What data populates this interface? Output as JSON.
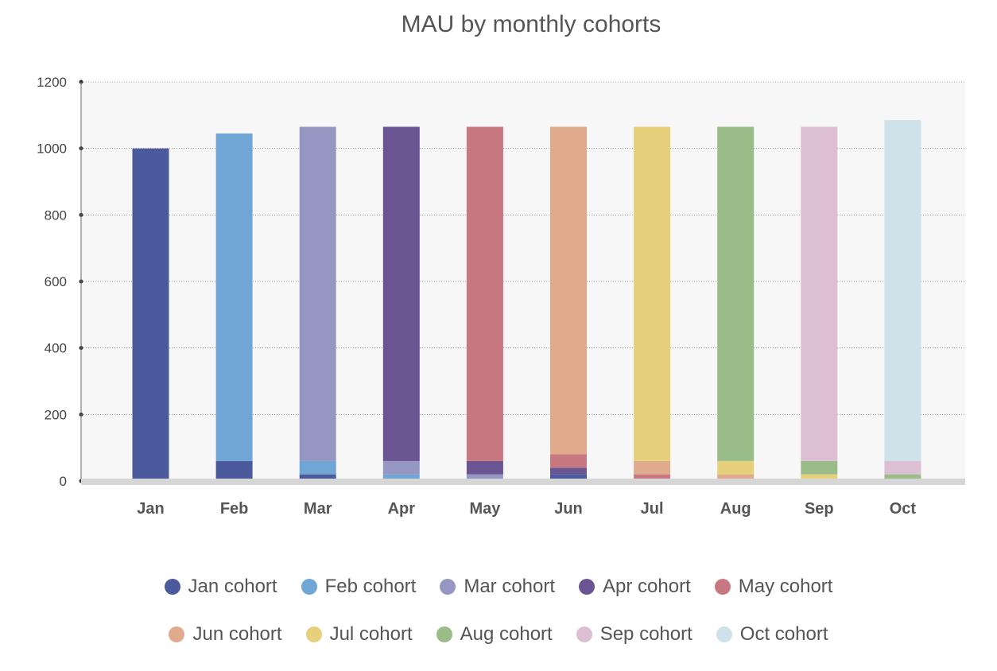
{
  "chart_data": {
    "type": "bar",
    "stacked": true,
    "title": "MAU by monthly cohorts",
    "xlabel": "",
    "ylabel": "",
    "ylim": [
      0,
      1200
    ],
    "yticks": [
      0,
      200,
      400,
      600,
      800,
      1000,
      1200
    ],
    "grid": true,
    "legend_position": "bottom",
    "categories": [
      "Jan",
      "Feb",
      "Mar",
      "Apr",
      "May",
      "Jun",
      "Jul",
      "Aug",
      "Sep",
      "Oct"
    ],
    "series": [
      {
        "name": "Jan cohort",
        "color": "#4b5a9c",
        "values": [
          1000,
          60,
          20,
          0,
          0,
          20,
          0,
          0,
          0,
          0
        ]
      },
      {
        "name": "Feb cohort",
        "color": "#70a6d6",
        "values": [
          0,
          985,
          40,
          20,
          0,
          0,
          0,
          0,
          0,
          0
        ]
      },
      {
        "name": "Mar cohort",
        "color": "#9597c2",
        "values": [
          0,
          0,
          1005,
          40,
          20,
          0,
          0,
          0,
          0,
          0
        ]
      },
      {
        "name": "Apr cohort",
        "color": "#6a5492",
        "values": [
          0,
          0,
          0,
          1005,
          40,
          20,
          0,
          0,
          0,
          0
        ]
      },
      {
        "name": "May cohort",
        "color": "#c87880",
        "values": [
          0,
          0,
          0,
          0,
          1005,
          40,
          20,
          0,
          0,
          0
        ]
      },
      {
        "name": "Jun cohort",
        "color": "#dfab8c",
        "values": [
          0,
          0,
          0,
          0,
          0,
          985,
          40,
          20,
          0,
          0
        ]
      },
      {
        "name": "Jul cohort",
        "color": "#e7d07c",
        "values": [
          0,
          0,
          0,
          0,
          0,
          0,
          1005,
          40,
          20,
          0
        ]
      },
      {
        "name": "Aug cohort",
        "color": "#9abc88",
        "values": [
          0,
          0,
          0,
          0,
          0,
          0,
          0,
          1005,
          40,
          20
        ]
      },
      {
        "name": "Sep cohort",
        "color": "#ddbfd3",
        "values": [
          0,
          0,
          0,
          0,
          0,
          0,
          0,
          0,
          1005,
          40
        ]
      },
      {
        "name": "Oct cohort",
        "color": "#cfe2e9",
        "values": [
          0,
          0,
          0,
          0,
          0,
          0,
          0,
          0,
          0,
          1025
        ]
      }
    ]
  }
}
